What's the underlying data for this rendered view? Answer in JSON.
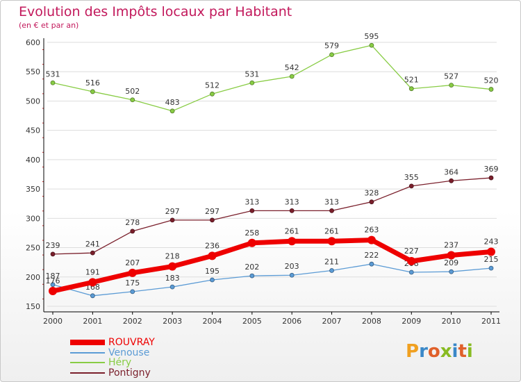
{
  "title": "Evolution des Impôts locaux par Habitant",
  "subtitle": "(en € et par an)",
  "logo": "Proxiti",
  "chart_data": {
    "type": "line",
    "x": [
      "2000",
      "2001",
      "2002",
      "2003",
      "2004",
      "2005",
      "2006",
      "2007",
      "2008",
      "2009",
      "2010",
      "2011"
    ],
    "ylim": [
      150,
      600
    ],
    "yticks": [
      150,
      200,
      250,
      300,
      350,
      400,
      450,
      500,
      550,
      600
    ],
    "grid": "horizontal",
    "legend_position": "bottom-left",
    "series": [
      {
        "name": "Héry",
        "color": "#88cc44",
        "width": 1.3,
        "values": [
          531,
          516,
          502,
          483,
          512,
          531,
          542,
          579,
          595,
          521,
          527,
          520
        ]
      },
      {
        "name": "Pontigny",
        "color": "#7a1f2b",
        "width": 1.3,
        "values": [
          239,
          241,
          278,
          297,
          297,
          313,
          313,
          313,
          328,
          355,
          364,
          369
        ]
      },
      {
        "name": "Venouse",
        "color": "#5b9bd5",
        "width": 1.3,
        "values": [
          187,
          168,
          175,
          183,
          195,
          202,
          203,
          211,
          222,
          208,
          209,
          215
        ]
      },
      {
        "name": "ROUVRAY",
        "color": "#ee0000",
        "width": 7,
        "values": [
          176,
          191,
          207,
          218,
          236,
          258,
          261,
          261,
          263,
          227,
          237,
          243
        ]
      }
    ],
    "legend": [
      {
        "name": "ROUVRAY",
        "color": "#ee0000",
        "width": 8
      },
      {
        "name": "Venouse",
        "color": "#5b9bd5",
        "width": 2
      },
      {
        "name": "Héry",
        "color": "#88cc44",
        "width": 2
      },
      {
        "name": "Pontigny",
        "color": "#7a1f2b",
        "width": 2
      }
    ]
  }
}
